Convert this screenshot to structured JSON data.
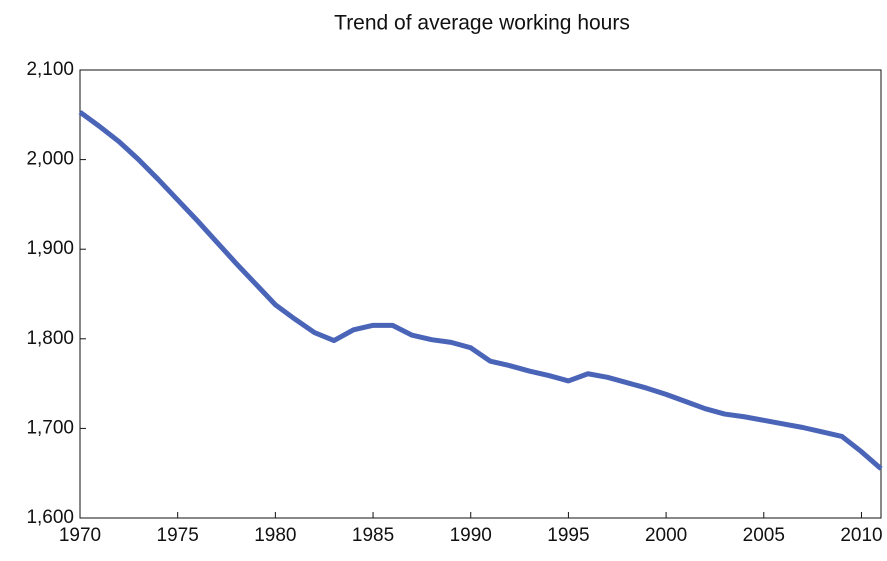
{
  "chart_data": {
    "type": "line",
    "title": "Trend of average working hours",
    "x": [
      1970,
      1971,
      1972,
      1973,
      1974,
      1975,
      1976,
      1977,
      1978,
      1979,
      1980,
      1981,
      1982,
      1983,
      1984,
      1985,
      1986,
      1987,
      1988,
      1989,
      1990,
      1991,
      1992,
      1993,
      1994,
      1995,
      1996,
      1997,
      1998,
      1999,
      2000,
      2001,
      2002,
      2003,
      2004,
      2005,
      2006,
      2007,
      2008,
      2009,
      2010,
      2011
    ],
    "values": [
      2053,
      2037,
      2020,
      2000,
      1978,
      1955,
      1932,
      1908,
      1884,
      1861,
      1838,
      1822,
      1807,
      1798,
      1810,
      1815,
      1815,
      1804,
      1799,
      1796,
      1790,
      1775,
      1770,
      1764,
      1759,
      1753,
      1761,
      1757,
      1751,
      1745,
      1738,
      1730,
      1722,
      1716,
      1713,
      1709,
      1705,
      1701,
      1696,
      1691,
      1674,
      1655
    ],
    "color": "#4a64b8",
    "xlim": [
      1970,
      2011
    ],
    "xticks": [
      1970,
      1975,
      1980,
      1985,
      1990,
      1995,
      2000,
      2005,
      2010
    ],
    "ylim": [
      1600,
      2100
    ],
    "yticks": [
      {
        "value": 1600,
        "label": "1,600"
      },
      {
        "value": 1700,
        "label": "1,700"
      },
      {
        "value": 1800,
        "label": "1,800"
      },
      {
        "value": 1900,
        "label": "1,900"
      },
      {
        "value": 2000,
        "label": "2,000"
      },
      {
        "value": 2100,
        "label": "2,100"
      }
    ],
    "grid": false
  }
}
